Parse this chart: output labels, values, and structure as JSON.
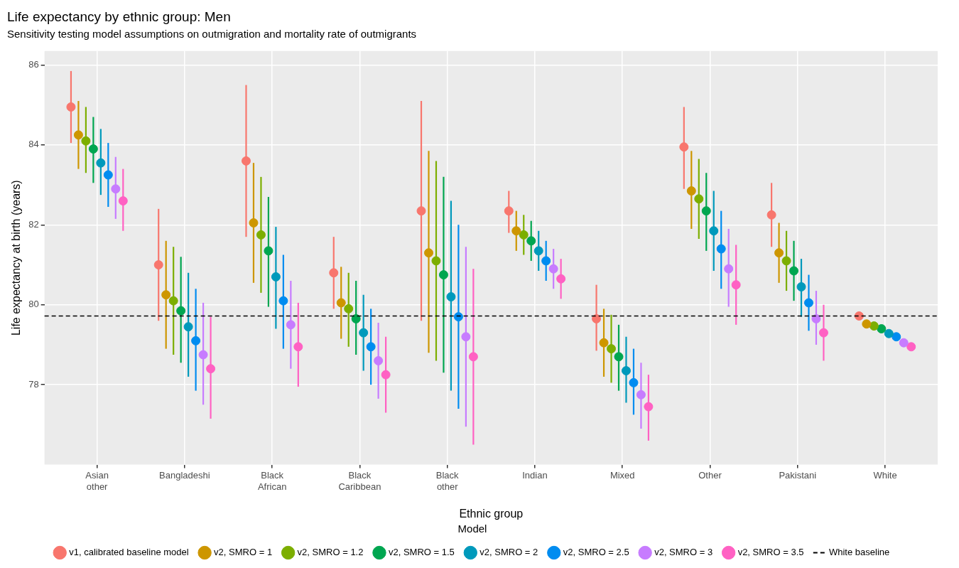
{
  "chart_data": {
    "type": "scatter",
    "title": "Life expectancy by ethnic group: Men",
    "subtitle": "Sensitivity testing model assumptions on outmigration and mortality rate of outmigrants",
    "xlabel": "Ethnic group",
    "ylabel": "Life expectancy at birth (years)",
    "legend_title": "Model",
    "legend": "bottom",
    "grid": true,
    "marker": "circle",
    "categories": [
      "Asian other",
      "Bangladeshi",
      "Black African",
      "Black Caribbean",
      "Black other",
      "Indian",
      "Mixed",
      "Other",
      "Pakistani",
      "White"
    ],
    "ylim": [
      76.0,
      86.35
    ],
    "yticks": [
      78,
      80,
      82,
      84,
      86
    ],
    "ref_lines": [
      {
        "axis": "y",
        "value": 79.72,
        "label": "White baseline",
        "color": "#000000",
        "line_style": "dashed"
      }
    ],
    "series": [
      {
        "name": "v1, calibrated baseline model",
        "color": "#f8766d",
        "values": [
          84.95,
          81.0,
          83.6,
          80.8,
          82.35,
          82.35,
          79.65,
          83.95,
          82.25,
          79.72
        ],
        "errors": [
          [
            84.05,
            85.85
          ],
          [
            79.6,
            82.4
          ],
          [
            81.7,
            85.5
          ],
          [
            79.9,
            81.7
          ],
          [
            79.6,
            85.1
          ],
          [
            81.8,
            82.85
          ],
          [
            78.85,
            80.5
          ],
          [
            82.9,
            84.95
          ],
          [
            81.45,
            83.05
          ],
          null
        ]
      },
      {
        "name": "v2, SMRO = 1",
        "color": "#cd9600",
        "values": [
          84.25,
          80.25,
          82.05,
          80.05,
          81.3,
          81.85,
          79.05,
          82.85,
          81.3,
          79.52
        ],
        "errors": [
          [
            83.4,
            85.1
          ],
          [
            78.9,
            81.6
          ],
          [
            80.55,
            83.55
          ],
          [
            79.15,
            80.95
          ],
          [
            78.8,
            83.85
          ],
          [
            81.35,
            82.35
          ],
          [
            78.2,
            79.9
          ],
          [
            81.9,
            83.85
          ],
          [
            80.55,
            82.05
          ],
          null
        ]
      },
      {
        "name": "v2, SMRO = 1.2",
        "color": "#7cae00",
        "values": [
          84.1,
          80.1,
          81.75,
          79.9,
          81.1,
          81.75,
          78.9,
          82.65,
          81.1,
          79.47
        ],
        "errors": [
          [
            83.3,
            84.95
          ],
          [
            78.75,
            81.45
          ],
          [
            80.3,
            83.2
          ],
          [
            78.95,
            80.8
          ],
          [
            78.6,
            83.6
          ],
          [
            81.25,
            82.25
          ],
          [
            78.05,
            79.75
          ],
          [
            81.65,
            83.65
          ],
          [
            80.35,
            81.85
          ],
          null
        ]
      },
      {
        "name": "v2, SMRO = 1.5",
        "color": "#00a650",
        "values": [
          83.9,
          79.85,
          81.35,
          79.65,
          80.75,
          81.6,
          78.7,
          82.35,
          80.85,
          79.4
        ],
        "errors": [
          [
            83.05,
            84.7
          ],
          [
            78.55,
            81.2
          ],
          [
            79.95,
            82.7
          ],
          [
            78.75,
            80.6
          ],
          [
            78.3,
            83.2
          ],
          [
            81.1,
            82.1
          ],
          [
            77.85,
            79.5
          ],
          [
            81.35,
            83.3
          ],
          [
            80.1,
            81.6
          ],
          null
        ]
      },
      {
        "name": "v2, SMRO = 2",
        "color": "#0099bb",
        "values": [
          83.55,
          79.45,
          80.7,
          79.3,
          80.2,
          81.35,
          78.35,
          81.85,
          80.45,
          79.28
        ],
        "errors": [
          [
            82.75,
            84.4
          ],
          [
            78.2,
            80.8
          ],
          [
            79.4,
            81.95
          ],
          [
            78.35,
            80.25
          ],
          [
            77.85,
            82.6
          ],
          [
            80.85,
            81.85
          ],
          [
            77.55,
            79.2
          ],
          [
            80.85,
            82.85
          ],
          [
            79.7,
            81.15
          ],
          null
        ]
      },
      {
        "name": "v2, SMRO = 2.5",
        "color": "#008cf0",
        "values": [
          83.25,
          79.1,
          80.1,
          78.95,
          79.7,
          81.1,
          78.05,
          81.4,
          80.05,
          79.2
        ],
        "errors": [
          [
            82.45,
            84.05
          ],
          [
            77.85,
            80.4
          ],
          [
            78.9,
            81.25
          ],
          [
            78.0,
            79.9
          ],
          [
            77.4,
            82.0
          ],
          [
            80.6,
            81.6
          ],
          [
            77.25,
            78.9
          ],
          [
            80.4,
            82.35
          ],
          [
            79.35,
            80.75
          ],
          null
        ]
      },
      {
        "name": "v2, SMRO = 3",
        "color": "#c77cff",
        "values": [
          82.9,
          78.75,
          79.5,
          78.6,
          79.2,
          80.9,
          77.75,
          80.9,
          79.65,
          79.05
        ],
        "errors": [
          [
            82.15,
            83.7
          ],
          [
            77.5,
            80.05
          ],
          [
            78.4,
            80.6
          ],
          [
            77.65,
            79.55
          ],
          [
            76.95,
            81.45
          ],
          [
            80.4,
            81.4
          ],
          [
            76.9,
            78.55
          ],
          [
            79.95,
            81.9
          ],
          [
            79.0,
            80.35
          ],
          null
        ]
      },
      {
        "name": "v2, SMRO = 3.5",
        "color": "#ff61c3",
        "values": [
          82.6,
          78.4,
          78.95,
          78.25,
          78.7,
          80.65,
          77.45,
          80.5,
          79.3,
          78.95
        ],
        "errors": [
          [
            81.85,
            83.4
          ],
          [
            77.15,
            79.7
          ],
          [
            77.95,
            80.05
          ],
          [
            77.3,
            79.2
          ],
          [
            76.5,
            80.9
          ],
          [
            80.15,
            81.15
          ],
          [
            76.6,
            78.25
          ],
          [
            79.5,
            81.5
          ],
          [
            78.6,
            80.0
          ],
          null
        ]
      }
    ]
  }
}
